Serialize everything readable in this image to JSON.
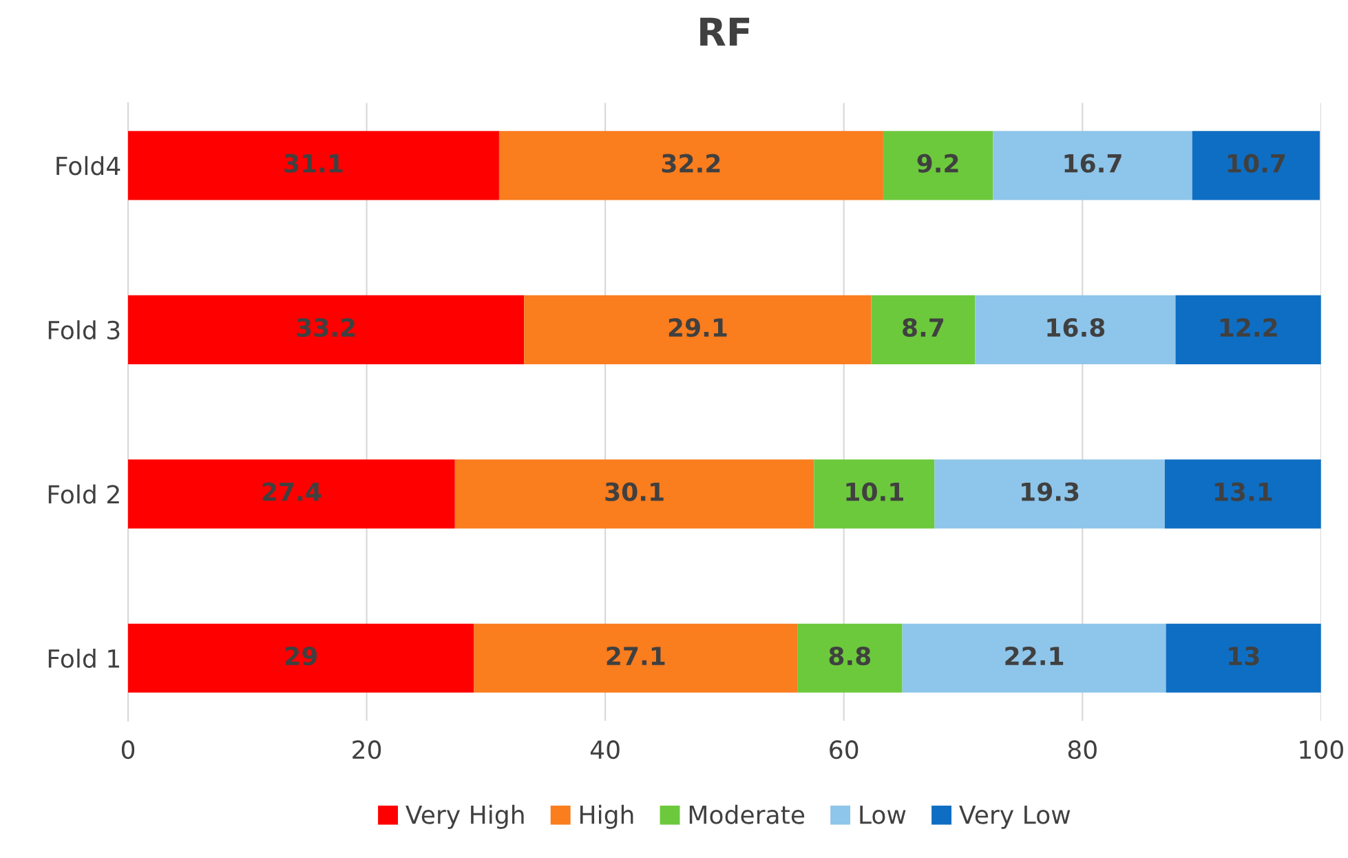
{
  "chart_data": {
    "type": "bar",
    "title": "RF",
    "orientation": "horizontal",
    "stacked": true,
    "categories": [
      "Fold4",
      "Fold 3",
      "Fold 2",
      "Fold 1"
    ],
    "series": [
      {
        "name": "Very High",
        "color": "#ff0000",
        "values": [
          31.1,
          33.2,
          27.4,
          29
        ]
      },
      {
        "name": "High",
        "color": "#fa7d1e",
        "values": [
          32.2,
          29.1,
          30.1,
          27.1
        ]
      },
      {
        "name": "Moderate",
        "color": "#6cc93c",
        "values": [
          9.2,
          8.7,
          10.1,
          8.8
        ]
      },
      {
        "name": "Low",
        "color": "#8ec5ea",
        "values": [
          16.7,
          16.8,
          19.3,
          22.1
        ]
      },
      {
        "name": "Very Low",
        "color": "#0e6ec3",
        "values": [
          10.7,
          12.2,
          13.1,
          13
        ]
      }
    ],
    "xlim": [
      0,
      100
    ],
    "xticks": [
      0,
      20,
      40,
      60,
      80,
      100
    ],
    "grid": "x",
    "legend": "bottom",
    "data_labels": true
  }
}
